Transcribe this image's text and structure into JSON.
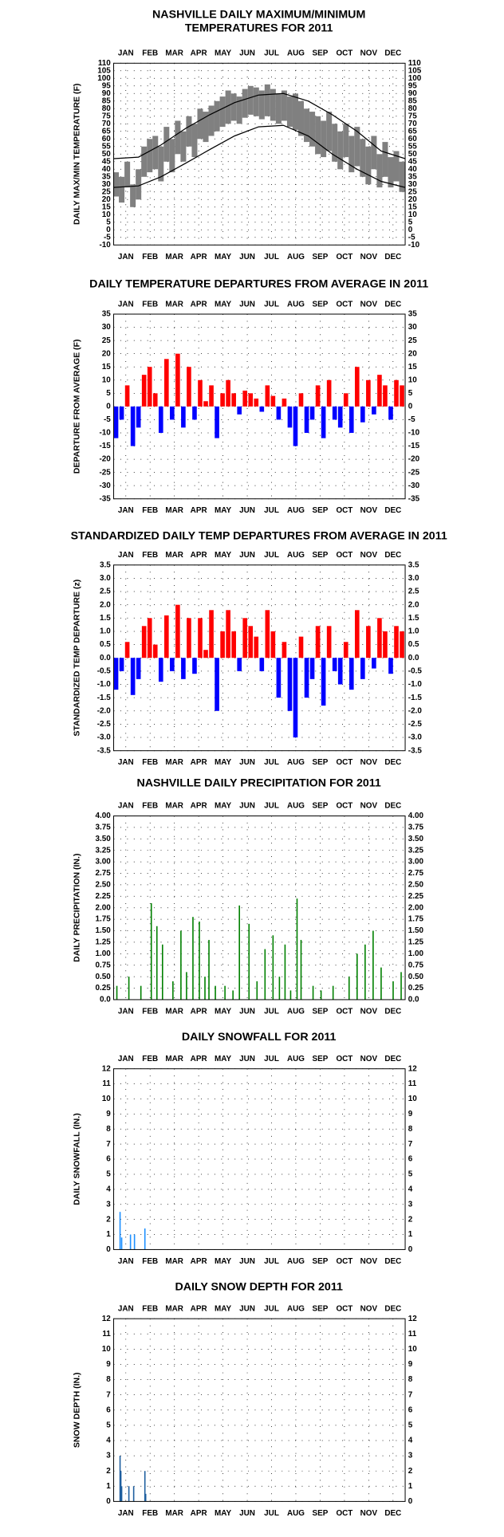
{
  "chart_data": [
    {
      "type": "range",
      "title": [
        "NASHVILLE DAILY MAXIMUM/MINIMUM",
        "TEMPERATURES FOR 2011"
      ],
      "y_label": "DAILY MAX/MIN TEMPERATURE (F)",
      "categories": [
        "JAN",
        "FEB",
        "MAR",
        "APR",
        "MAY",
        "JUN",
        "JUL",
        "AUG",
        "SEP",
        "OCT",
        "NOV",
        "DEC"
      ],
      "xlim": [
        1,
        365
      ],
      "x": [
        4,
        11,
        18,
        25,
        32,
        39,
        46,
        53,
        60,
        67,
        74,
        81,
        88,
        95,
        102,
        109,
        116,
        123,
        130,
        137,
        144,
        151,
        158,
        165,
        172,
        179,
        186,
        193,
        200,
        207,
        214,
        221,
        228,
        235,
        242,
        249,
        256,
        263,
        270,
        277,
        284,
        291,
        298,
        305,
        312,
        319,
        326,
        333,
        340,
        347,
        354,
        361
      ],
      "max_values": [
        38,
        35,
        45,
        30,
        40,
        55,
        60,
        62,
        55,
        68,
        60,
        72,
        65,
        75,
        70,
        80,
        78,
        82,
        85,
        88,
        92,
        90,
        88,
        93,
        95,
        94,
        92,
        96,
        93,
        90,
        92,
        88,
        90,
        85,
        80,
        78,
        75,
        72,
        78,
        70,
        65,
        70,
        62,
        68,
        60,
        55,
        62,
        50,
        58,
        48,
        52,
        45
      ],
      "min_values": [
        22,
        18,
        28,
        15,
        20,
        35,
        38,
        40,
        32,
        45,
        38,
        50,
        45,
        55,
        48,
        60,
        58,
        62,
        65,
        68,
        70,
        72,
        70,
        74,
        76,
        75,
        73,
        75,
        72,
        70,
        72,
        68,
        66,
        62,
        58,
        55,
        50,
        48,
        52,
        45,
        40,
        48,
        38,
        42,
        35,
        30,
        40,
        28,
        35,
        28,
        32,
        25
      ],
      "normal_x": [
        1,
        32,
        60,
        91,
        121,
        152,
        182,
        213,
        244,
        274,
        305,
        335,
        365
      ],
      "normal_max": [
        47,
        48,
        56,
        67,
        76,
        84,
        89,
        90,
        85,
        76,
        65,
        52,
        47
      ],
      "normal_min": [
        28,
        29,
        35,
        44,
        53,
        62,
        68,
        69,
        62,
        50,
        40,
        32,
        28
      ],
      "color": "#808080",
      "normal_color": "#000000",
      "ylim": [
        -10,
        110
      ],
      "yticks": [
        -10,
        -5,
        0,
        5,
        10,
        15,
        20,
        25,
        30,
        35,
        40,
        45,
        50,
        55,
        60,
        65,
        70,
        75,
        80,
        85,
        90,
        95,
        100,
        105,
        110
      ],
      "grid": true
    },
    {
      "type": "diverging",
      "title": "DAILY TEMPERATURE DEPARTURES FROM AVERAGE IN 2011",
      "y_label": "DEPARTURE FROM AVERAGE (F)",
      "categories": [
        "JAN",
        "FEB",
        "MAR",
        "APR",
        "MAY",
        "JUN",
        "JUL",
        "AUG",
        "SEP",
        "OCT",
        "NOV",
        "DEC"
      ],
      "xlim": [
        1,
        365
      ],
      "x": [
        4,
        11,
        18,
        25,
        32,
        39,
        46,
        53,
        60,
        67,
        74,
        81,
        88,
        95,
        102,
        109,
        116,
        123,
        130,
        137,
        144,
        151,
        158,
        165,
        172,
        179,
        186,
        193,
        200,
        207,
        214,
        221,
        228,
        235,
        242,
        249,
        256,
        263,
        270,
        277,
        284,
        291,
        298,
        305,
        312,
        319,
        326,
        333,
        340,
        347,
        354,
        361
      ],
      "values": [
        -12,
        -5,
        8,
        -15,
        -8,
        12,
        15,
        5,
        -10,
        18,
        -5,
        20,
        -8,
        15,
        -5,
        10,
        2,
        8,
        -12,
        5,
        10,
        5,
        -3,
        6,
        5,
        3,
        -2,
        8,
        4,
        -5,
        3,
        -8,
        -15,
        5,
        -10,
        -5,
        8,
        -12,
        10,
        -5,
        -8,
        5,
        -10,
        15,
        -6,
        10,
        -3,
        12,
        8,
        -5,
        10,
        8
      ],
      "pos_color": "#ff0000",
      "neg_color": "#0000ff",
      "ylim": [
        -35,
        35
      ],
      "yticks": [
        -35,
        -30,
        -25,
        -20,
        -15,
        -10,
        -5,
        0,
        5,
        10,
        15,
        20,
        25,
        30,
        35
      ],
      "grid": true
    },
    {
      "type": "diverging",
      "title": "STANDARDIZED DAILY TEMP DEPARTURES FROM AVERAGE IN 2011",
      "y_label": "STANDARDIZED TEMP DEPARTURE (z)",
      "categories": [
        "JAN",
        "FEB",
        "MAR",
        "APR",
        "MAY",
        "JUN",
        "JUL",
        "AUG",
        "SEP",
        "OCT",
        "NOV",
        "DEC"
      ],
      "xlim": [
        1,
        365
      ],
      "x": [
        4,
        11,
        18,
        25,
        32,
        39,
        46,
        53,
        60,
        67,
        74,
        81,
        88,
        95,
        102,
        109,
        116,
        123,
        130,
        137,
        144,
        151,
        158,
        165,
        172,
        179,
        186,
        193,
        200,
        207,
        214,
        221,
        228,
        235,
        242,
        249,
        256,
        263,
        270,
        277,
        284,
        291,
        298,
        305,
        312,
        319,
        326,
        333,
        340,
        347,
        354,
        361
      ],
      "values": [
        -1.2,
        -0.5,
        0.6,
        -1.4,
        -0.8,
        1.2,
        1.5,
        0.5,
        -0.9,
        1.6,
        -0.5,
        2.0,
        -0.8,
        1.5,
        -0.6,
        1.5,
        0.3,
        1.8,
        -2.0,
        1.0,
        1.8,
        1.0,
        -0.5,
        1.5,
        1.2,
        0.8,
        -0.5,
        1.8,
        1.0,
        -1.5,
        0.6,
        -2.0,
        -3.0,
        0.8,
        -1.5,
        -0.8,
        1.2,
        -1.8,
        1.2,
        -0.5,
        -1.0,
        0.6,
        -1.2,
        1.8,
        -0.8,
        1.2,
        -0.4,
        1.5,
        1.0,
        -0.6,
        1.2,
        1.0
      ],
      "pos_color": "#ff0000",
      "neg_color": "#0000ff",
      "ylim": [
        -3.5,
        3.5
      ],
      "yticks": [
        -3.5,
        {
          "value": -3,
          "label": "-3.0"
        },
        -2.5,
        {
          "value": -2,
          "label": "-2.0"
        },
        -1.5,
        {
          "value": -1,
          "label": "-1.0"
        },
        -0.5,
        {
          "value": 0,
          "label": "0.0"
        },
        0.5,
        {
          "value": 1,
          "label": "1.0"
        },
        1.5,
        {
          "value": 2,
          "label": "2.0"
        },
        2.5,
        {
          "value": 3,
          "label": "3.0"
        },
        3.5
      ],
      "grid": true
    },
    {
      "type": "bar",
      "title": "NASHVILLE DAILY PRECIPITATION FOR 2011",
      "y_label": "DAILY PRECIPITATION (IN.)",
      "categories": [
        "JAN",
        "FEB",
        "MAR",
        "APR",
        "MAY",
        "JUN",
        "JUL",
        "AUG",
        "SEP",
        "OCT",
        "NOV",
        "DEC"
      ],
      "xlim": [
        1,
        365
      ],
      "x": [
        5,
        20,
        35,
        48,
        55,
        62,
        75,
        85,
        92,
        100,
        108,
        115,
        120,
        128,
        140,
        150,
        158,
        170,
        180,
        190,
        200,
        208,
        215,
        222,
        230,
        235,
        250,
        260,
        275,
        295,
        305,
        315,
        325,
        335,
        350,
        360
      ],
      "values": [
        0.3,
        0.5,
        0.3,
        2.1,
        1.6,
        1.2,
        0.4,
        1.5,
        0.6,
        1.8,
        1.7,
        0.5,
        1.3,
        0.3,
        0.3,
        0.2,
        2.05,
        1.65,
        0.4,
        1.1,
        1.4,
        0.5,
        1.2,
        0.2,
        2.2,
        1.3,
        0.3,
        0.2,
        0.3,
        0.5,
        1.0,
        1.2,
        1.5,
        0.7,
        0.4,
        0.6
      ],
      "color": "#008000",
      "ylim": [
        0,
        4
      ],
      "yticks": [
        {
          "value": 0,
          "label": "0.0"
        },
        0.25,
        {
          "value": 0.5,
          "label": "0.50"
        },
        0.75,
        {
          "value": 1,
          "label": "1.00"
        },
        1.25,
        {
          "value": 1.5,
          "label": "1.50"
        },
        1.75,
        {
          "value": 2,
          "label": "2.00"
        },
        2.25,
        {
          "value": 2.5,
          "label": "2.50"
        },
        2.75,
        {
          "value": 3,
          "label": "3.00"
        },
        3.25,
        {
          "value": 3.5,
          "label": "3.50"
        },
        3.75,
        {
          "value": 4,
          "label": "4.00"
        }
      ],
      "grid": true
    },
    {
      "type": "bar",
      "title": "DAILY SNOWFALL FOR 2011",
      "y_label": "DAILY SNOWFALL (IN.)",
      "categories": [
        "JAN",
        "FEB",
        "MAR",
        "APR",
        "MAY",
        "JUN",
        "JUL",
        "AUG",
        "SEP",
        "OCT",
        "NOV",
        "DEC"
      ],
      "xlim": [
        1,
        365
      ],
      "x": [
        9,
        11,
        22,
        27,
        40
      ],
      "values": [
        2.5,
        0.8,
        1.0,
        1.0,
        1.4
      ],
      "color": "#1e90ff",
      "ylim": [
        0,
        12
      ],
      "yticks": [
        0,
        1,
        2,
        3,
        4,
        5,
        6,
        7,
        8,
        9,
        10,
        11,
        12
      ],
      "grid": true
    },
    {
      "type": "bar",
      "title": "DAILY SNOW DEPTH FOR 2011",
      "y_label": "SNOW DEPTH (IN.)",
      "categories": [
        "JAN",
        "FEB",
        "MAR",
        "APR",
        "MAY",
        "JUN",
        "JUL",
        "AUG",
        "SEP",
        "OCT",
        "NOV",
        "DEC"
      ],
      "xlim": [
        1,
        365
      ],
      "x": [
        9,
        10,
        11,
        20,
        26,
        40,
        41
      ],
      "values": [
        3,
        2,
        1,
        1,
        1,
        2,
        0.5
      ],
      "color": "#1f5f9f",
      "ylim": [
        0,
        12
      ],
      "yticks": [
        0,
        1,
        2,
        3,
        4,
        5,
        6,
        7,
        8,
        9,
        10,
        11,
        12
      ],
      "grid": true
    }
  ]
}
